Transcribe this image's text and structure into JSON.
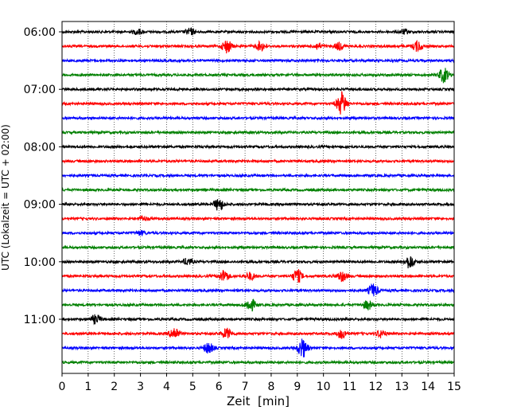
{
  "chart_data": {
    "type": "line",
    "xlabel": "Zeit  [min]",
    "ylabel": "UTC (Lokalzeit = UTC + 02:00)",
    "xlim": [
      0,
      15
    ],
    "x_ticks": [
      "0",
      "1",
      "2",
      "3",
      "4",
      "5",
      "6",
      "7",
      "8",
      "9",
      "10",
      "11",
      "12",
      "13",
      "14",
      "15"
    ],
    "y_tick_labels": [
      "06:00",
      "07:00",
      "08:00",
      "09:00",
      "10:00",
      "11:00"
    ],
    "grid": "vertical dotted at each minute",
    "trace_colors": [
      "#000000",
      "#ff0000",
      "#0000ff",
      "#008000"
    ],
    "traces_count": 24,
    "trace_interval_min": 15,
    "bursts": [
      {
        "trace": 0,
        "x": 2.9,
        "amp": 0.35
      },
      {
        "trace": 0,
        "x": 4.9,
        "amp": 0.45
      },
      {
        "trace": 0,
        "x": 13.1,
        "amp": 0.3
      },
      {
        "trace": 1,
        "x": 6.3,
        "amp": 0.9
      },
      {
        "trace": 1,
        "x": 7.6,
        "amp": 0.6
      },
      {
        "trace": 1,
        "x": 9.8,
        "amp": 0.4
      },
      {
        "trace": 1,
        "x": 10.6,
        "amp": 0.5
      },
      {
        "trace": 1,
        "x": 13.6,
        "amp": 0.7
      },
      {
        "trace": 3,
        "x": 14.6,
        "amp": 1.0
      },
      {
        "trace": 5,
        "x": 10.7,
        "amp": 1.6
      },
      {
        "trace": 13,
        "x": 3.1,
        "amp": 0.3
      },
      {
        "trace": 12,
        "x": 6.0,
        "amp": 0.85
      },
      {
        "trace": 14,
        "x": 3.0,
        "amp": 0.3
      },
      {
        "trace": 16,
        "x": 4.8,
        "amp": 0.45
      },
      {
        "trace": 16,
        "x": 13.3,
        "amp": 0.9
      },
      {
        "trace": 17,
        "x": 6.2,
        "amp": 0.8
      },
      {
        "trace": 17,
        "x": 7.2,
        "amp": 0.5
      },
      {
        "trace": 17,
        "x": 9.0,
        "amp": 0.9
      },
      {
        "trace": 17,
        "x": 10.7,
        "amp": 0.7
      },
      {
        "trace": 18,
        "x": 11.9,
        "amp": 0.85
      },
      {
        "trace": 19,
        "x": 7.2,
        "amp": 0.9
      },
      {
        "trace": 19,
        "x": 11.7,
        "amp": 0.6
      },
      {
        "trace": 20,
        "x": 1.3,
        "amp": 0.6
      },
      {
        "trace": 21,
        "x": 4.3,
        "amp": 0.9
      },
      {
        "trace": 21,
        "x": 6.3,
        "amp": 0.7
      },
      {
        "trace": 21,
        "x": 10.7,
        "amp": 0.6
      },
      {
        "trace": 21,
        "x": 12.2,
        "amp": 0.5
      },
      {
        "trace": 22,
        "x": 5.6,
        "amp": 0.75
      },
      {
        "trace": 22,
        "x": 9.2,
        "amp": 1.3
      }
    ]
  }
}
